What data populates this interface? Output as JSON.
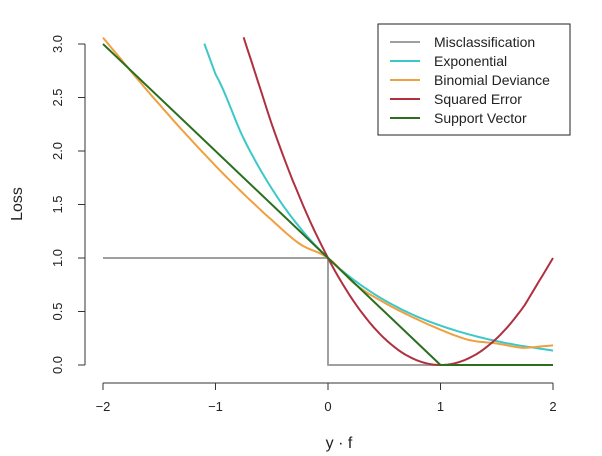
{
  "chart_data": {
    "type": "line",
    "title": "",
    "xlabel": "y · f",
    "ylabel": "Loss",
    "xlim": [
      -2,
      2
    ],
    "ylim": [
      0,
      3
    ],
    "x_ticks": [
      -2,
      -1,
      0,
      1,
      2
    ],
    "x_tick_labels": [
      "−2",
      "−1",
      "0",
      "1",
      "2"
    ],
    "y_ticks": [
      0,
      0.5,
      1,
      1.5,
      2,
      2.5,
      3
    ],
    "y_tick_labels": [
      "0.0",
      "0.5",
      "1.0",
      "1.5",
      "2.0",
      "2.5",
      "3.0"
    ],
    "grid": false,
    "legend_position": "top-right",
    "series": [
      {
        "name": "Misclassification",
        "color": "#a0a0a0",
        "x": [
          -2,
          0,
          0,
          2
        ],
        "y": [
          1,
          1,
          0,
          0
        ]
      },
      {
        "name": "Exponential",
        "color": "#3cc8c8",
        "x": [
          -1.1,
          -1.0,
          -0.75,
          -0.5,
          -0.25,
          0,
          0.25,
          0.5,
          0.75,
          1.0,
          1.25,
          1.5,
          1.75,
          2.0
        ],
        "y": [
          3.004,
          2.718,
          2.117,
          1.649,
          1.284,
          1.0,
          0.779,
          0.607,
          0.472,
          0.368,
          0.287,
          0.223,
          0.174,
          0.135
        ]
      },
      {
        "name": "Binomial Deviance",
        "color": "#f0a040",
        "x": [
          -2,
          -1.75,
          -1.5,
          -1.25,
          -1,
          -0.75,
          -0.5,
          -0.25,
          0,
          0.25,
          0.5,
          0.75,
          1.0,
          1.25,
          1.5,
          1.75,
          2.0
        ],
        "y": [
          3.06,
          2.743,
          2.436,
          2.142,
          1.862,
          1.599,
          1.355,
          1.131,
          1.0,
          0.748,
          0.583,
          0.448,
          0.33,
          0.235,
          0.201,
          0.16,
          0.183
        ]
      },
      {
        "name": "Squared Error",
        "color": "#b03040",
        "x": [
          -0.75,
          -0.5,
          -0.25,
          0,
          0.25,
          0.5,
          0.75,
          1.0,
          1.25,
          1.5,
          1.75,
          2.0
        ],
        "y": [
          3.0625,
          2.25,
          1.5625,
          1.0,
          0.5625,
          0.25,
          0.0625,
          0.0,
          0.0625,
          0.25,
          0.5625,
          1.0
        ]
      },
      {
        "name": "Support Vector",
        "color": "#2a6e1e",
        "x": [
          -2,
          1,
          2
        ],
        "y": [
          3,
          0,
          0
        ]
      }
    ]
  }
}
